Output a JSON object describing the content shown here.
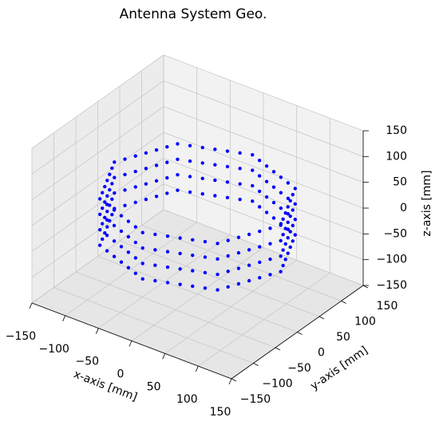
{
  "chart_data": {
    "type": "scatter3d",
    "title": "Antenna System Geo.",
    "xlabel": "x-axis [mm]",
    "ylabel": "y-axis [mm]",
    "zlabel": "z-axis [mm]",
    "color": "#0000ff",
    "xlim": [
      -150,
      150
    ],
    "ylim": [
      -150,
      150
    ],
    "zlim": [
      -150,
      150
    ],
    "xticks": [
      {
        "value": -150,
        "label": "−150"
      },
      {
        "value": -100,
        "label": "−100"
      },
      {
        "value": -50,
        "label": "−50"
      },
      0,
      50,
      100,
      150
    ],
    "yticks": [
      {
        "value": -150,
        "label": "−150"
      },
      {
        "value": -100,
        "label": "−100"
      },
      {
        "value": -50,
        "label": "−50"
      },
      0,
      50,
      100,
      150
    ],
    "zticks": [
      {
        "value": -150,
        "label": "−150"
      },
      {
        "value": -100,
        "label": "−100"
      },
      {
        "value": -50,
        "label": "−50"
      },
      0,
      50,
      100,
      150
    ],
    "grid": true,
    "x": [
      125,
      118.9,
      112.8,
      106.7,
      100.6,
      94.5,
      88.4,
      73.7,
      58.9,
      44.2,
      29.5,
      14.7,
      0,
      -14.7,
      -29.5,
      -44.2,
      -58.9,
      -73.7,
      -88.4,
      -94.5,
      -100.6,
      -106.7,
      -112.8,
      -118.9,
      -125,
      -118.9,
      -112.8,
      -106.7,
      -100.6,
      -94.5,
      -88.4,
      -73.7,
      -58.9,
      -44.2,
      -29.5,
      -14.7,
      0,
      14.7,
      29.5,
      44.2,
      58.9,
      73.7,
      88.4,
      94.5,
      100.6,
      106.7,
      112.8,
      118.9,
      125,
      118.9,
      112.8,
      106.7,
      100.6,
      94.5,
      88.4,
      73.7,
      58.9,
      44.2,
      29.5,
      14.7,
      0,
      -14.7,
      -29.5,
      -44.2,
      -58.9,
      -73.7,
      -88.4,
      -94.5,
      -100.6,
      -106.7,
      -112.8,
      -118.9,
      -125,
      -118.9,
      -112.8,
      -106.7,
      -100.6,
      -94.5,
      -88.4,
      -73.7,
      -58.9,
      -44.2,
      -29.5,
      -14.7,
      0,
      14.7,
      29.5,
      44.2,
      58.9,
      73.7,
      88.4,
      94.5,
      100.6,
      106.7,
      112.8,
      118.9,
      125,
      118.9,
      112.8,
      106.7,
      100.6,
      94.5,
      88.4,
      73.7,
      58.9,
      44.2,
      29.5,
      14.7,
      0,
      -14.7,
      -29.5,
      -44.2,
      -58.9,
      -73.7,
      -88.4,
      -94.5,
      -100.6,
      -106.7,
      -112.8,
      -118.9,
      -125,
      -118.9,
      -112.8,
      -106.7,
      -100.6,
      -94.5,
      -88.4,
      -73.7,
      -58.9,
      -44.2,
      -29.5,
      -14.7,
      0,
      14.7,
      29.5,
      44.2,
      58.9,
      73.7,
      88.4,
      94.5,
      100.6,
      106.7,
      112.8,
      118.9,
      125,
      118.9,
      112.8,
      106.7,
      100.6,
      94.5,
      88.4,
      73.7,
      58.9,
      44.2,
      29.5,
      14.7,
      0,
      -14.7,
      -29.5,
      -44.2,
      -58.9,
      -73.7,
      -88.4,
      -94.5,
      -100.6,
      -106.7,
      -112.8,
      -118.9,
      -125,
      -118.9,
      -112.8,
      -106.7,
      -100.6,
      -94.5,
      -88.4,
      -73.7,
      -58.9,
      -44.2,
      -29.5,
      -14.7,
      0,
      14.7,
      29.5,
      44.2,
      58.9,
      73.7,
      88.4,
      94.5,
      100.6,
      106.7,
      112.8,
      118.9
    ],
    "y": [
      0,
      14.7,
      29.5,
      44.2,
      58.9,
      73.7,
      88.4,
      94.5,
      100.6,
      106.7,
      112.8,
      118.9,
      125,
      118.9,
      112.8,
      106.7,
      100.6,
      94.5,
      88.4,
      73.7,
      58.9,
      44.2,
      29.5,
      14.7,
      0,
      -14.7,
      -29.5,
      -44.2,
      -58.9,
      -73.7,
      -88.4,
      -94.5,
      -100.6,
      -106.7,
      -112.8,
      -118.9,
      -125,
      -118.9,
      -112.8,
      -106.7,
      -100.6,
      -94.5,
      -88.4,
      -73.7,
      -58.9,
      -44.2,
      -29.5,
      -14.7,
      0,
      14.7,
      29.5,
      44.2,
      58.9,
      73.7,
      88.4,
      94.5,
      100.6,
      106.7,
      112.8,
      118.9,
      125,
      118.9,
      112.8,
      106.7,
      100.6,
      94.5,
      88.4,
      73.7,
      58.9,
      44.2,
      29.5,
      14.7,
      0,
      -14.7,
      -29.5,
      -44.2,
      -58.9,
      -73.7,
      -88.4,
      -94.5,
      -100.6,
      -106.7,
      -112.8,
      -118.9,
      -125,
      -118.9,
      -112.8,
      -106.7,
      -100.6,
      -94.5,
      -88.4,
      -73.7,
      -58.9,
      -44.2,
      -29.5,
      -14.7,
      0,
      14.7,
      29.5,
      44.2,
      58.9,
      73.7,
      88.4,
      94.5,
      100.6,
      106.7,
      112.8,
      118.9,
      125,
      118.9,
      112.8,
      106.7,
      100.6,
      94.5,
      88.4,
      73.7,
      58.9,
      44.2,
      29.5,
      14.7,
      0,
      -14.7,
      -29.5,
      -44.2,
      -58.9,
      -73.7,
      -88.4,
      -94.5,
      -100.6,
      -106.7,
      -112.8,
      -118.9,
      -125,
      -118.9,
      -112.8,
      -106.7,
      -100.6,
      -94.5,
      -88.4,
      -73.7,
      -58.9,
      -44.2,
      -29.5,
      -14.7,
      0,
      14.7,
      29.5,
      44.2,
      58.9,
      73.7,
      88.4,
      94.5,
      100.6,
      106.7,
      112.8,
      118.9,
      125,
      118.9,
      112.8,
      106.7,
      100.6,
      94.5,
      88.4,
      73.7,
      58.9,
      44.2,
      29.5,
      14.7,
      0,
      -14.7,
      -29.5,
      -44.2,
      -58.9,
      -73.7,
      -88.4,
      -94.5,
      -100.6,
      -106.7,
      -112.8,
      -118.9,
      -125,
      -118.9,
      -112.8,
      -106.7,
      -100.6,
      -94.5,
      -88.4,
      -73.7,
      -58.9,
      -44.2,
      -29.5,
      -14.7
    ],
    "z": [
      -45,
      -45,
      -45,
      -45,
      -45,
      -45,
      -45,
      -45,
      -45,
      -45,
      -45,
      -45,
      -45,
      -45,
      -45,
      -45,
      -45,
      -45,
      -45,
      -45,
      -45,
      -45,
      -45,
      -45,
      -45,
      -45,
      -45,
      -45,
      -45,
      -45,
      -45,
      -45,
      -45,
      -45,
      -45,
      -45,
      -45,
      -45,
      -45,
      -45,
      -45,
      -45,
      -45,
      -45,
      -45,
      -45,
      -45,
      -45,
      -15,
      -15,
      -15,
      -15,
      -15,
      -15,
      -15,
      -15,
      -15,
      -15,
      -15,
      -15,
      -15,
      -15,
      -15,
      -15,
      -15,
      -15,
      -15,
      -15,
      -15,
      -15,
      -15,
      -15,
      -15,
      -15,
      -15,
      -15,
      -15,
      -15,
      -15,
      -15,
      -15,
      -15,
      -15,
      -15,
      -15,
      -15,
      -15,
      -15,
      -15,
      -15,
      -15,
      -15,
      -15,
      -15,
      -15,
      -15,
      15,
      15,
      15,
      15,
      15,
      15,
      15,
      15,
      15,
      15,
      15,
      15,
      15,
      15,
      15,
      15,
      15,
      15,
      15,
      15,
      15,
      15,
      15,
      15,
      15,
      15,
      15,
      15,
      15,
      15,
      15,
      15,
      15,
      15,
      15,
      15,
      15,
      15,
      15,
      15,
      15,
      15,
      15,
      15,
      15,
      15,
      15,
      15,
      45,
      45,
      45,
      45,
      45,
      45,
      45,
      45,
      45,
      45,
      45,
      45,
      45,
      45,
      45,
      45,
      45,
      45,
      45,
      45,
      45,
      45,
      45,
      45,
      45,
      45,
      45,
      45,
      45,
      45,
      45,
      45,
      45,
      45,
      45,
      45,
      45,
      45,
      45,
      45,
      45,
      45,
      45,
      45,
      45,
      45,
      45,
      45
    ]
  }
}
